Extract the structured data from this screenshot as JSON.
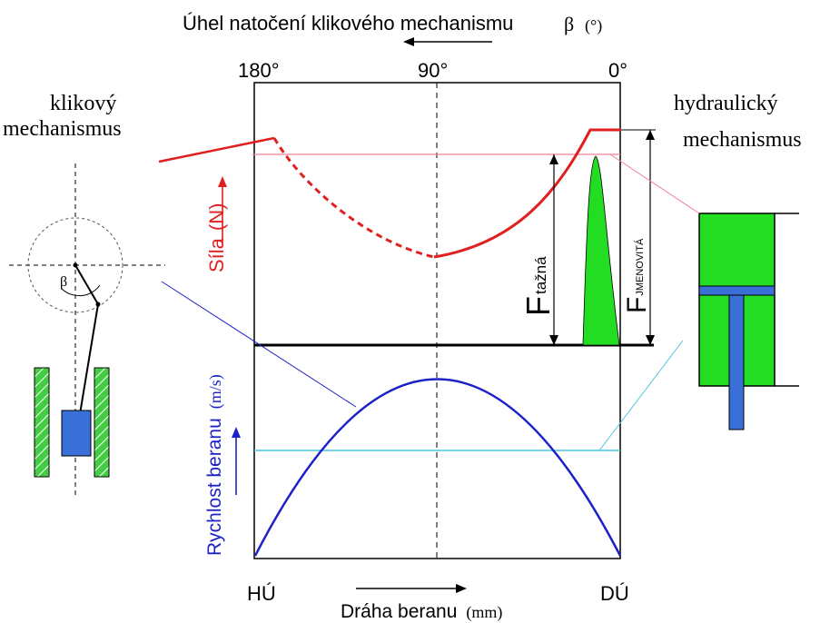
{
  "top_axis": {
    "title": "Úhel natočení klikového mechanismu",
    "beta_symbol": "β",
    "unit": "(°)",
    "tick_180": "180°",
    "tick_90": "90°",
    "tick_0": "0°"
  },
  "left_caption": {
    "line1": "klikový",
    "line2": "mechanismus"
  },
  "right_caption": {
    "line1": "hydraulický",
    "line2": "mechanismus"
  },
  "force_axis": {
    "label": "Síla",
    "unit": "(N)"
  },
  "velocity_axis": {
    "label": "Rychlost beranu",
    "unit": "(m/s)"
  },
  "bottom_axis": {
    "start_label": "HÚ",
    "end_label": "DÚ",
    "title": "Dráha beranu",
    "unit": "(mm)"
  },
  "force_labels": {
    "tazna_main": "F",
    "tazna_sub": "tažná",
    "jmenovita_main": "F",
    "jmenovita_sub": "JMENOVITÁ"
  },
  "crank_angle_symbol": "β",
  "colors": {
    "force": "#e02020",
    "force_reference": "#f08098",
    "velocity": "#1c22c8",
    "velocity_reference": "#4cc6e0",
    "hydraulic_fill": "#22dd22",
    "piston": "#3a6fd8",
    "hatch": "#44cc44",
    "axis": "#000000"
  }
}
